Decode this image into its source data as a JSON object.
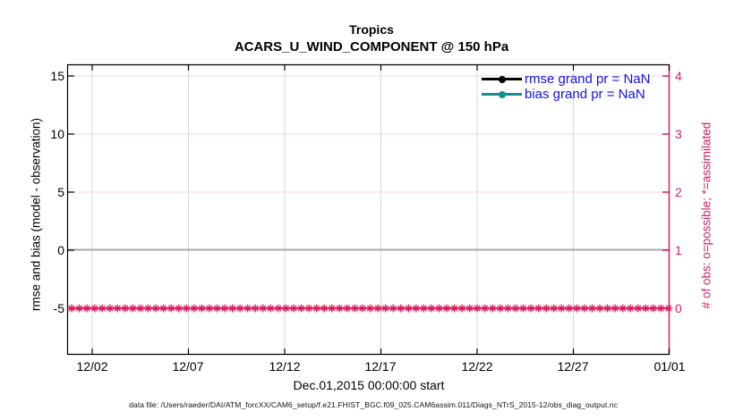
{
  "title": {
    "line1": "Tropics",
    "line2": "ACARS_U_WIND_COMPONENT @ 150 hPa"
  },
  "legend": [
    {
      "label": "rmse grand pr = NaN",
      "color": "#000000",
      "marker": "filled-circle"
    },
    {
      "label": "bias grand pr = NaN",
      "color": "#11918d",
      "marker": "filled-circle"
    }
  ],
  "axes": {
    "left": {
      "label": "rmse and bias (model - observation)",
      "ticks": [
        "15",
        "10",
        "5",
        "0",
        "-5"
      ],
      "range": [
        -9,
        16
      ],
      "color": "#000000"
    },
    "right": {
      "label": "# of obs: o=possible; *=assimilated",
      "ticks": [
        "4",
        "3",
        "2",
        "1",
        "0"
      ],
      "range": [
        -0.8,
        4.2
      ],
      "color": "#d6215f"
    },
    "x": {
      "label": "Dec.01,2015 00:00:00 start",
      "ticks": [
        "12/02",
        "12/07",
        "12/12",
        "12/17",
        "12/22",
        "12/27",
        "01/01"
      ]
    }
  },
  "caption": {
    "text": "data file: /Users/raeder/DAI/ATM_forcXX/CAM6_setup/f.e21.FHIST_BGC.f09_025.CAM6assim.011/Diags_NTrS_2015-12/obs_diag_output.nc"
  },
  "colors": {
    "crimson": "#d6215f",
    "teal": "#11918d",
    "legend_text_blue": "#1111ee",
    "grid_vertical_gray": "#d9d9d9",
    "grid_horizontal_pink": "#f6d7e2",
    "zero_line_gray": "#a9a9a9",
    "spine_black": "#000000"
  },
  "chart_data": {
    "type": "line",
    "title": "Tropics",
    "subtitle": "ACARS_U_WIND_COMPONENT @ 150 hPa",
    "xlabel": "Dec.01,2015 00:00:00 start",
    "ylabel_left": "rmse and bias (model - observation)",
    "ylabel_right": "# of obs: o=possible; *=assimilated",
    "x_tick_labels": [
      "12/02",
      "12/07",
      "12/12",
      "12/17",
      "12/22",
      "12/27",
      "01/01"
    ],
    "x_range_dates": [
      "2015-12-01",
      "2016-01-01"
    ],
    "x_tick_interval_days": 5,
    "ylim_left": [
      -9,
      16
    ],
    "y_left_tick_values": [
      15,
      10,
      5,
      0,
      -5
    ],
    "ylim_right": [
      -0.8,
      4.2
    ],
    "y_right_tick_values": [
      4,
      3,
      2,
      1,
      0
    ],
    "grid": true,
    "legend_position": "upper-right-inside",
    "series": [
      {
        "name": "rmse grand pr = NaN",
        "axis": "left",
        "color": "#000000",
        "marker": "circle",
        "values": "NaN",
        "plotted": false
      },
      {
        "name": "bias grand pr = NaN",
        "axis": "left",
        "color": "#11918d",
        "marker": "circle",
        "values": "NaN",
        "plotted": false
      },
      {
        "name": "# of obs possible (o)",
        "axis": "right",
        "color": "#d6215f",
        "marker": "o",
        "constant_value": 0
      },
      {
        "name": "# of obs assimilated (*)",
        "axis": "right",
        "color": "#d6215f",
        "marker": "*",
        "constant_value": 0
      }
    ],
    "zero_reference_line_left_value": 0
  }
}
